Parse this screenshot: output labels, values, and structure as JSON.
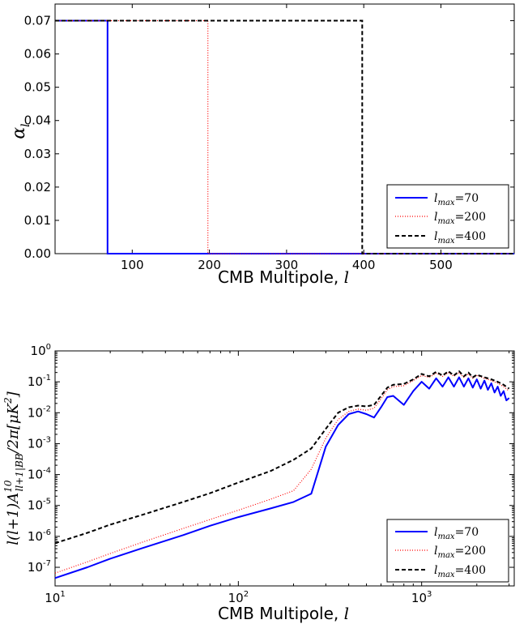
{
  "chart_data": [
    {
      "type": "line",
      "xlabel_text": "CMB Multipole, ",
      "xlabel_var": "l",
      "ylabel_base": "α",
      "ylabel_sub": "l",
      "xlim": [
        0,
        595
      ],
      "ylim": [
        0,
        0.075
      ],
      "xticks": [
        100,
        200,
        300,
        400,
        500
      ],
      "yticks": [
        0.0,
        0.01,
        0.02,
        0.03,
        0.04,
        0.05,
        0.06,
        0.07
      ],
      "ytick_labels": [
        "0.00",
        "0.01",
        "0.02",
        "0.03",
        "0.04",
        "0.05",
        "0.06",
        "0.07"
      ],
      "legend_position": "bottom-right",
      "series": [
        {
          "name_base": "l",
          "name_sub": "max",
          "name_value": "=70",
          "color": "#0000ff",
          "style": "solid",
          "x": [
            0,
            68,
            68,
            595
          ],
          "y": [
            0.07,
            0.07,
            0.0,
            0.0
          ]
        },
        {
          "name_base": "l",
          "name_sub": "max",
          "name_value": "=200",
          "color": "#ff0000",
          "style": "dotted",
          "x": [
            0,
            198,
            198,
            595
          ],
          "y": [
            0.07,
            0.07,
            0.0,
            0.0
          ]
        },
        {
          "name_base": "l",
          "name_sub": "max",
          "name_value": "=400",
          "color": "#000000",
          "style": "dashed",
          "x": [
            0,
            398,
            398,
            595
          ],
          "y": [
            0.07,
            0.07,
            0.0,
            0.0
          ]
        }
      ]
    },
    {
      "type": "line",
      "xscale": "log",
      "yscale": "log",
      "xlabel_text": "CMB Multipole, ",
      "xlabel_var": "l",
      "ylabel_text": "l(l+1)A",
      "ylabel_sup": "10",
      "ylabel_sub": "ll+1|BB",
      "ylabel_tail": "/2π[μK",
      "ylabel_tail_sup": "2",
      "ylabel_end": "]",
      "xlim": [
        10,
        3200
      ],
      "ylim": [
        2.5e-08,
        1
      ],
      "xticks": [
        10,
        100,
        1000
      ],
      "xtick_bases": [
        "10",
        "10",
        "10"
      ],
      "xtick_exps": [
        "1",
        "2",
        "3"
      ],
      "yticks": [
        1e-07,
        1e-06,
        1e-05,
        0.0001,
        0.001,
        0.01,
        0.1,
        1
      ],
      "ytick_bases": [
        "10",
        "10",
        "10",
        "10",
        "10",
        "10",
        "10",
        "10"
      ],
      "ytick_exps": [
        "-7",
        "-6",
        "-5",
        "-4",
        "-3",
        "-2",
        "-1",
        "0"
      ],
      "legend_position": "bottom-right",
      "series": [
        {
          "name_base": "l",
          "name_sub": "max",
          "name_value": "=70",
          "color": "#0000ff",
          "style": "solid",
          "x": [
            10,
            15,
            20,
            30,
            50,
            70,
            100,
            150,
            200,
            250,
            300,
            350,
            400,
            450,
            500,
            550,
            600,
            650,
            700,
            800,
            900,
            1000,
            1100,
            1200,
            1300,
            1400,
            1500,
            1600,
            1700,
            1800,
            1900,
            2000,
            2100,
            2200,
            2300,
            2400,
            2500,
            2600,
            2700,
            2800,
            2900,
            3000
          ],
          "y": [
            4.5e-08,
            1e-07,
            1.9e-07,
            4.2e-07,
            1.1e-06,
            2.2e-06,
            4.2e-06,
            8e-06,
            1.3e-05,
            2.4e-05,
            0.0008,
            0.004,
            0.009,
            0.011,
            0.009,
            0.007,
            0.015,
            0.032,
            0.035,
            0.018,
            0.05,
            0.1,
            0.06,
            0.13,
            0.07,
            0.14,
            0.07,
            0.14,
            0.07,
            0.13,
            0.065,
            0.12,
            0.06,
            0.11,
            0.055,
            0.09,
            0.045,
            0.07,
            0.035,
            0.05,
            0.025,
            0.03
          ]
        },
        {
          "name_base": "l",
          "name_sub": "max",
          "name_value": "=200",
          "color": "#ff0000",
          "style": "dotted",
          "x": [
            10,
            15,
            20,
            30,
            50,
            70,
            100,
            150,
            200,
            250,
            300,
            350,
            400,
            450,
            500,
            550,
            600,
            650,
            700,
            800,
            900,
            1000,
            1100,
            1200,
            1300,
            1400,
            1500,
            1600,
            1700,
            1800,
            1900,
            2000,
            2200,
            2400,
            2600,
            2800,
            3000
          ],
          "y": [
            6.5e-08,
            1.5e-07,
            2.8e-07,
            6.5e-07,
            1.8e-06,
            3.5e-06,
            7e-06,
            1.6e-05,
            3e-05,
            0.00015,
            0.0015,
            0.006,
            0.011,
            0.013,
            0.012,
            0.014,
            0.028,
            0.055,
            0.07,
            0.075,
            0.11,
            0.16,
            0.14,
            0.19,
            0.15,
            0.2,
            0.15,
            0.2,
            0.14,
            0.18,
            0.13,
            0.16,
            0.13,
            0.11,
            0.09,
            0.07,
            0.05
          ]
        },
        {
          "name_base": "l",
          "name_sub": "max",
          "name_value": "=400",
          "color": "#000000",
          "style": "dashed",
          "x": [
            10,
            15,
            20,
            30,
            50,
            70,
            100,
            150,
            200,
            250,
            300,
            350,
            400,
            450,
            500,
            550,
            600,
            650,
            700,
            800,
            900,
            1000,
            1100,
            1200,
            1300,
            1400,
            1500,
            1600,
            1700,
            1800,
            1900,
            2000,
            2200,
            2400,
            2600,
            2800,
            3000
          ],
          "y": [
            6e-07,
            1.3e-06,
            2.4e-06,
            5e-06,
            1.3e-05,
            2.5e-05,
            5.5e-05,
            0.00013,
            0.0003,
            0.0007,
            0.003,
            0.01,
            0.015,
            0.017,
            0.016,
            0.018,
            0.035,
            0.065,
            0.08,
            0.085,
            0.12,
            0.18,
            0.15,
            0.21,
            0.16,
            0.22,
            0.16,
            0.22,
            0.15,
            0.2,
            0.14,
            0.17,
            0.14,
            0.12,
            0.1,
            0.08,
            0.06
          ]
        }
      ]
    }
  ]
}
